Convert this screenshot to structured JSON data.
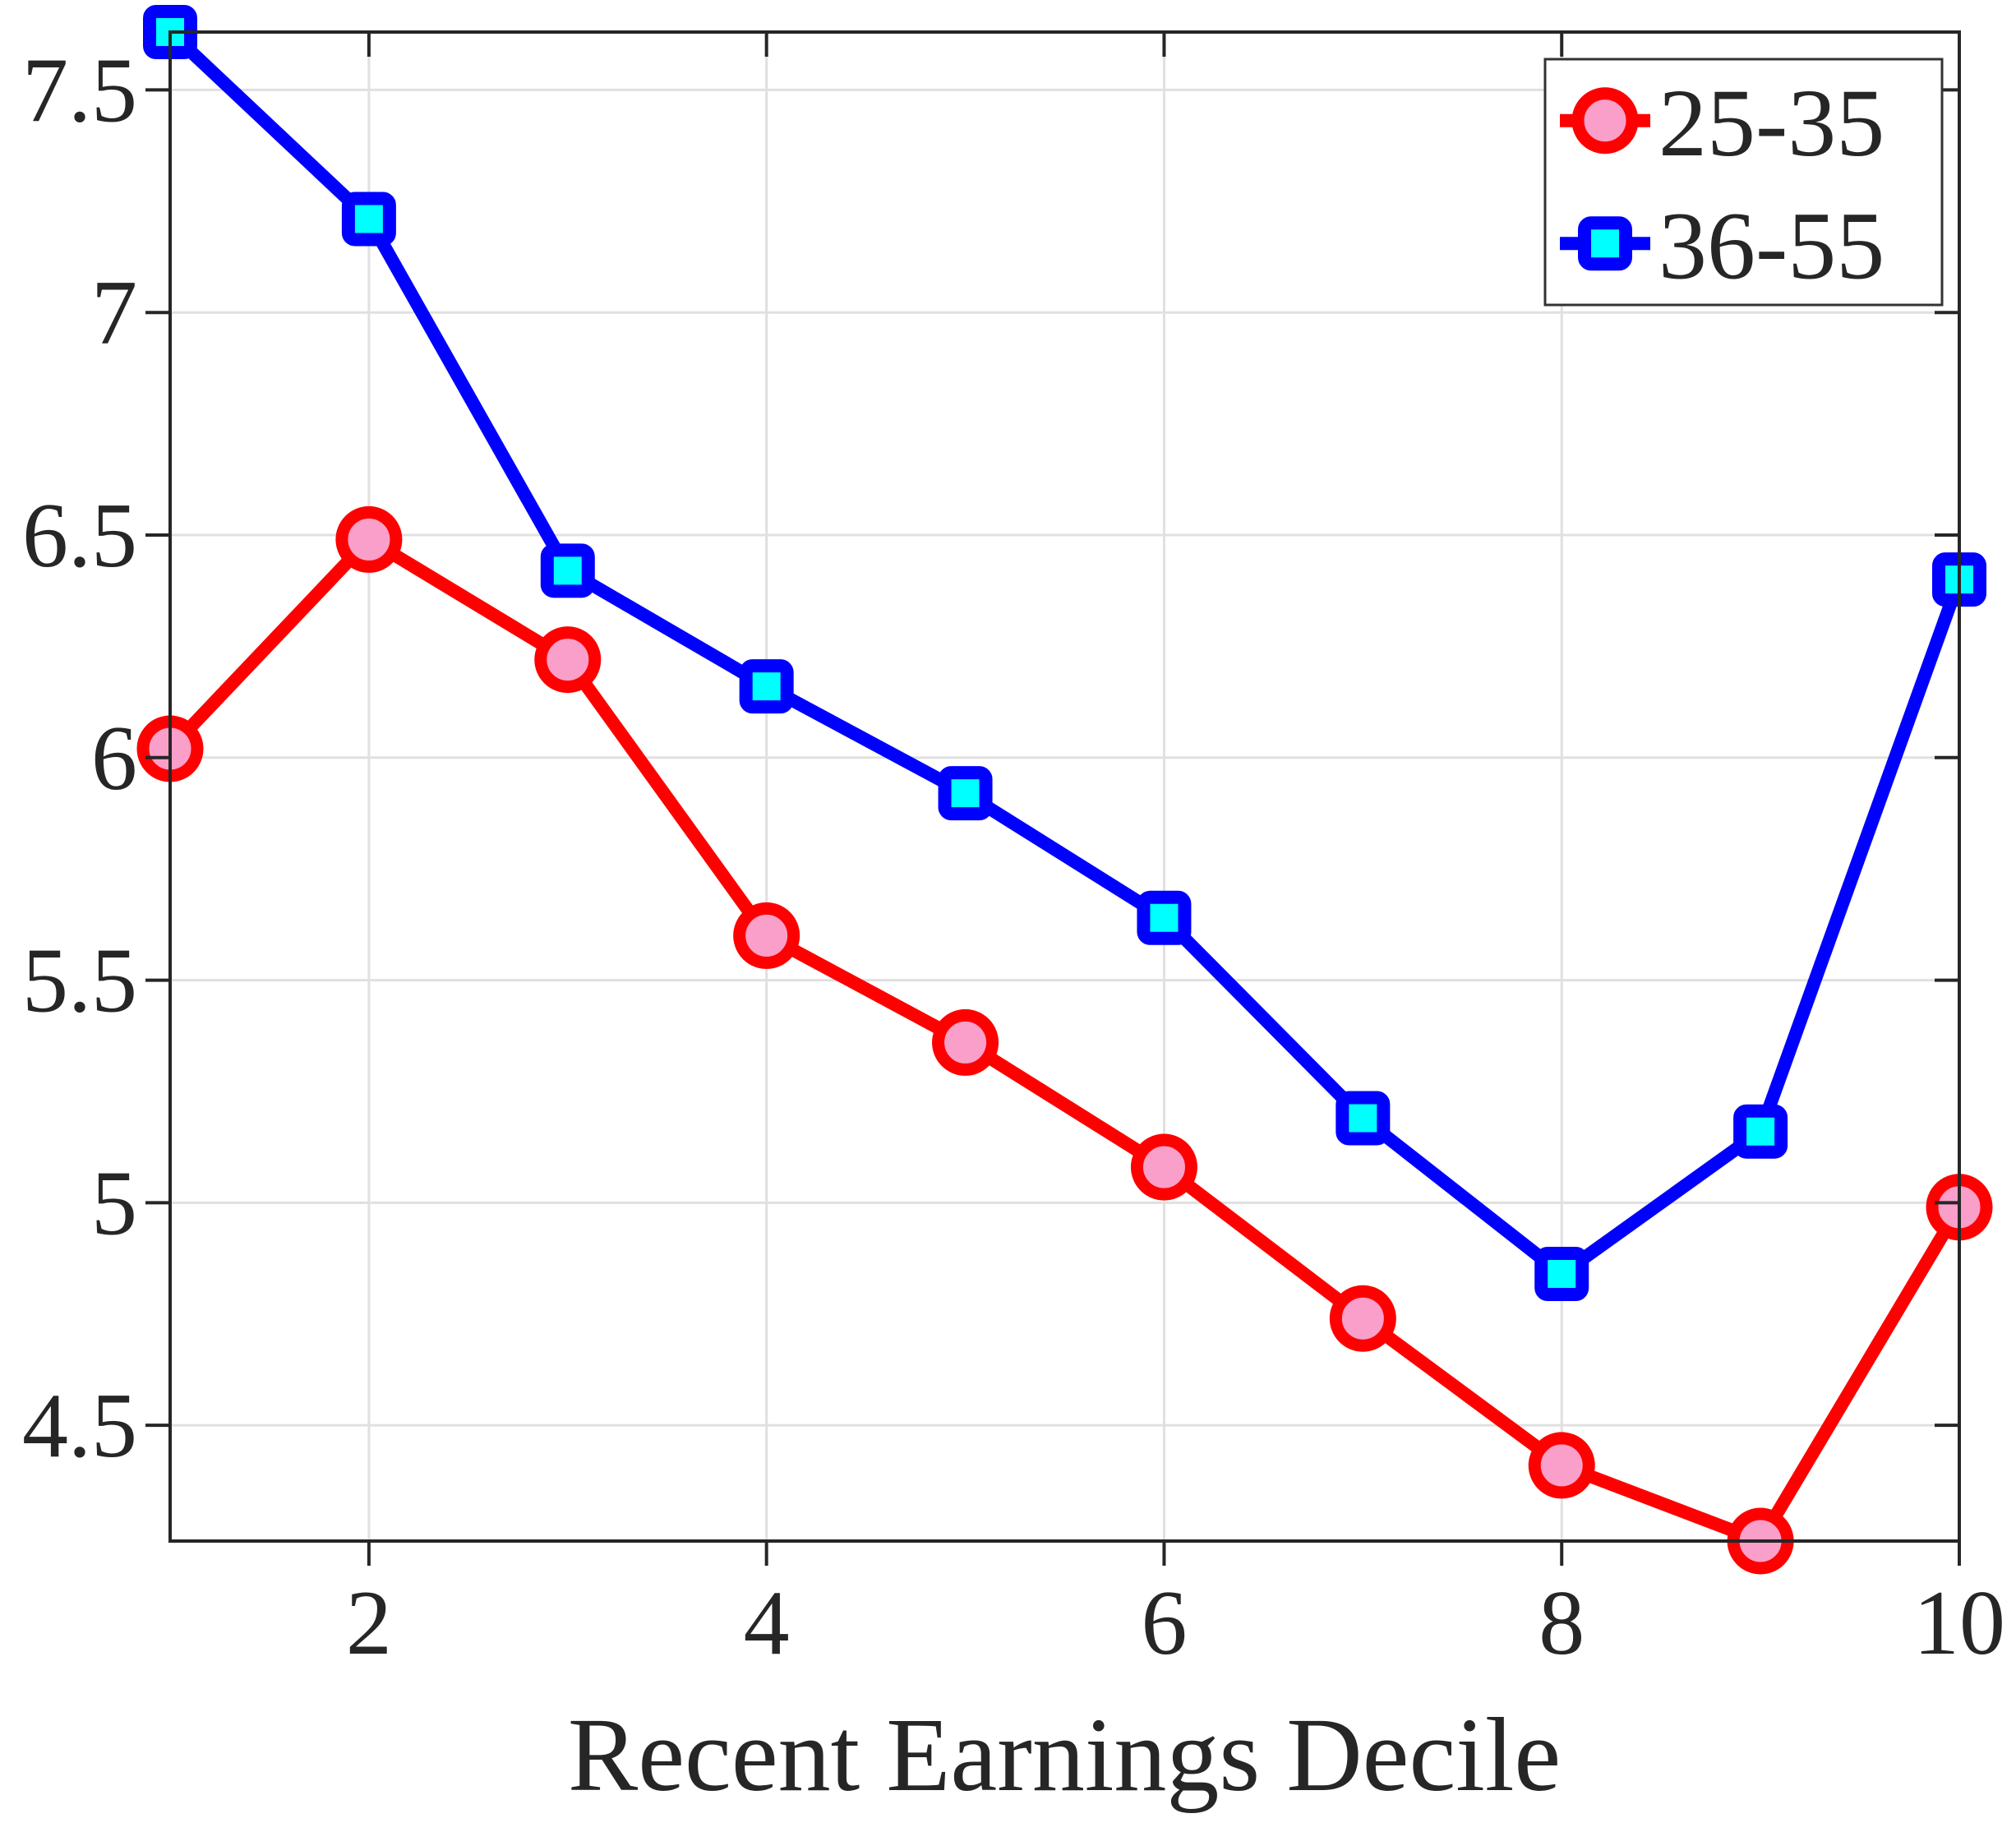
{
  "chart_data": {
    "type": "line",
    "title": "",
    "xlabel": "Recent Earnings Decile",
    "ylabel": "",
    "x": [
      1,
      2,
      3,
      4,
      5,
      6,
      7,
      8,
      9,
      10
    ],
    "xlim": [
      1,
      10
    ],
    "ylim": [
      4.24,
      7.63
    ],
    "xticks": [
      2,
      4,
      6,
      8,
      10
    ],
    "xtick_labels": [
      "2",
      "4",
      "6",
      "8",
      "10"
    ],
    "yticks": [
      4.5,
      5,
      5.5,
      6,
      6.5,
      7,
      7.5
    ],
    "ytick_labels": [
      "4.5",
      "5",
      "5.5",
      "6",
      "6.5",
      "7",
      "7.5"
    ],
    "grid": true,
    "legend_position": "top-right",
    "series": [
      {
        "name": "25-35",
        "marker": "circle",
        "line_color": "#FF0000",
        "marker_face": "#F99FC9",
        "values": [
          6.02,
          6.49,
          6.22,
          5.6,
          5.36,
          5.08,
          4.74,
          4.41,
          4.24,
          4.99
        ]
      },
      {
        "name": "36-55",
        "marker": "square",
        "line_color": "#0000FF",
        "marker_face": "#00FFFF",
        "values": [
          7.63,
          7.21,
          6.42,
          6.16,
          5.92,
          5.64,
          5.19,
          4.84,
          5.16,
          6.4
        ]
      }
    ]
  },
  "colors": {
    "background": "#FFFFFF",
    "grid": "#E0E0E0",
    "axis": "#262626",
    "text": "#262626",
    "legend_border": "#333333"
  }
}
